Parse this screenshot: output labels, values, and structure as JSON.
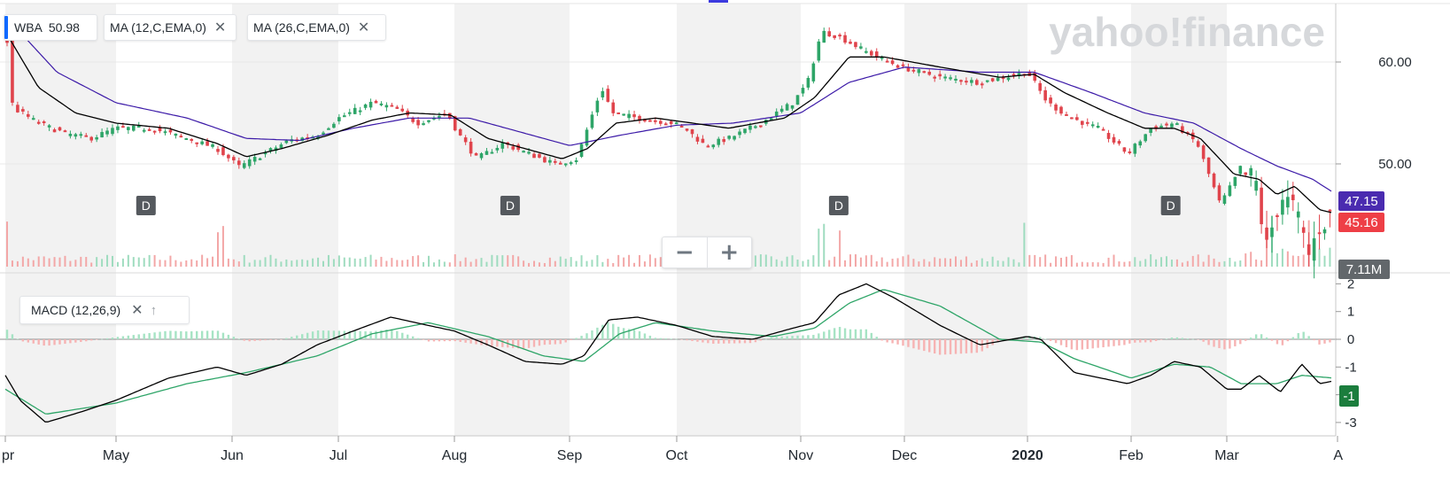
{
  "watermark": "yahoo!finance",
  "legend": {
    "ticker": "WBA",
    "ticker_price": "50.98",
    "ma12_label": "MA (12,C,EMA,0)",
    "ma26_label": "MA (26,C,EMA,0)",
    "macd_label": "MACD (12,26,9)",
    "close_symbol": "✕",
    "up_symbol": "↑"
  },
  "zoom": {
    "minus": "−",
    "plus": "+"
  },
  "badges": {
    "ma26_value": "47.15",
    "ma12_value": "45.16",
    "volume_value": "7.11M",
    "macd_value": "-1"
  },
  "colors": {
    "up": "#2ea568",
    "down": "#e0444c",
    "ma12": "#000000",
    "ma26": "#3c1aa8",
    "macd": "#000000",
    "signal": "#2ea568",
    "badge_ma26": "#4a2bb0",
    "badge_ma12": "#ee3f46",
    "badge_volume": "#62676b",
    "badge_macd": "#1b7d3d",
    "dividend_marker": "#55595e",
    "month_band": "#f2f2f2"
  },
  "chart_data": [
    {
      "type": "candlestick",
      "title": "WBA",
      "x_labels": [
        "pr",
        "May",
        "Jun",
        "Jul",
        "Aug",
        "Sep",
        "Oct",
        "Nov",
        "Dec",
        "2020",
        "Feb",
        "Mar",
        "A"
      ],
      "y_ticks": [
        "60.00",
        "50.00"
      ],
      "ylim": [
        39.9,
        65.9
      ],
      "dividend_markers": [
        {
          "label": "D",
          "date": "May 9"
        },
        {
          "label": "D",
          "date": "Aug 16"
        },
        {
          "label": "D",
          "date": "Nov 12"
        },
        {
          "label": "D",
          "date": "Feb 13"
        }
      ],
      "close_keypoints": [
        [
          "Apr 1",
          64.0
        ],
        [
          "Apr 3",
          55.5
        ],
        [
          "Apr 10",
          54.0
        ],
        [
          "Apr 17",
          53.0
        ],
        [
          "Apr 24",
          52.5
        ],
        [
          "May 1",
          53.5
        ],
        [
          "May 10",
          53.5
        ],
        [
          "May 20",
          52.5
        ],
        [
          "May 28",
          51.5
        ],
        [
          "Jun 3",
          49.7
        ],
        [
          "Jun 10",
          51.0
        ],
        [
          "Jun 17",
          52.3
        ],
        [
          "Jun 25",
          52.8
        ],
        [
          "Jul 1",
          54.5
        ],
        [
          "Jul 10",
          56.0
        ],
        [
          "Jul 16",
          55.5
        ],
        [
          "Jul 22",
          54.0
        ],
        [
          "Jul 30",
          55.0
        ],
        [
          "Aug 2",
          53.0
        ],
        [
          "Aug 7",
          50.5
        ],
        [
          "Aug 14",
          52.0
        ],
        [
          "Aug 21",
          51.0
        ],
        [
          "Aug 28",
          50.0
        ],
        [
          "Sep 3",
          50.5
        ],
        [
          "Sep 6",
          53.5
        ],
        [
          "Sep 10",
          57.5
        ],
        [
          "Sep 13",
          55.0
        ],
        [
          "Sep 20",
          54.5
        ],
        [
          "Sep 30",
          54.0
        ],
        [
          "Oct 3",
          53.5
        ],
        [
          "Oct 8",
          51.8
        ],
        [
          "Oct 14",
          52.5
        ],
        [
          "Oct 22",
          54.0
        ],
        [
          "Oct 30",
          56.0
        ],
        [
          "Nov 3",
          58.0
        ],
        [
          "Nov 7",
          63.0
        ],
        [
          "Nov 12",
          62.5
        ],
        [
          "Nov 20",
          61.0
        ],
        [
          "Nov 30",
          59.5
        ],
        [
          "Dec 10",
          58.5
        ],
        [
          "Dec 20",
          58.0
        ],
        [
          "Jan 1",
          59.0
        ],
        [
          "Jan 7",
          56.0
        ],
        [
          "Jan 14",
          54.5
        ],
        [
          "Jan 22",
          53.5
        ],
        [
          "Jan 31",
          51.0
        ],
        [
          "Feb 7",
          53.5
        ],
        [
          "Feb 14",
          54.0
        ],
        [
          "Feb 21",
          52.0
        ],
        [
          "Feb 28",
          46.0
        ],
        [
          "Mar 4",
          49.0
        ],
        [
          "Mar 9",
          48.5
        ],
        [
          "Mar 12",
          41.5
        ],
        [
          "Mar 16",
          47.0
        ],
        [
          "Mar 20",
          45.5
        ],
        [
          "Mar 24",
          41.0
        ],
        [
          "Mar 27",
          44.0
        ],
        [
          "Mar 31",
          45.16
        ]
      ],
      "ma12_keypoints": [
        [
          "Apr 1",
          63.0
        ],
        [
          "Apr 10",
          57.5
        ],
        [
          "Apr 20",
          55.0
        ],
        [
          "May 1",
          54.0
        ],
        [
          "May 15",
          53.5
        ],
        [
          "May 28",
          52.0
        ],
        [
          "Jun 5",
          50.7
        ],
        [
          "Jun 15",
          51.5
        ],
        [
          "Jun 28",
          52.8
        ],
        [
          "Jul 10",
          54.3
        ],
        [
          "Jul 20",
          55.0
        ],
        [
          "Jul 31",
          54.8
        ],
        [
          "Aug 10",
          52.5
        ],
        [
          "Aug 20",
          51.5
        ],
        [
          "Aug 30",
          50.5
        ],
        [
          "Sep 6",
          51.5
        ],
        [
          "Sep 14",
          54.0
        ],
        [
          "Sep 25",
          54.5
        ],
        [
          "Oct 5",
          54.0
        ],
        [
          "Oct 14",
          53.5
        ],
        [
          "Oct 28",
          54.5
        ],
        [
          "Nov 5",
          56.5
        ],
        [
          "Nov 15",
          60.5
        ],
        [
          "Nov 25",
          60.5
        ],
        [
          "Dec 10",
          59.5
        ],
        [
          "Dec 25",
          58.5
        ],
        [
          "Jan 3",
          58.8
        ],
        [
          "Jan 12",
          57.0
        ],
        [
          "Jan 25",
          55.0
        ],
        [
          "Feb 5",
          53.5
        ],
        [
          "Feb 14",
          53.5
        ],
        [
          "Feb 22",
          52.5
        ],
        [
          "Mar 3",
          49.0
        ],
        [
          "Mar 10",
          48.5
        ],
        [
          "Mar 15",
          47.0
        ],
        [
          "Mar 20",
          47.8
        ],
        [
          "Mar 27",
          45.5
        ],
        [
          "Mar 31",
          45.16
        ]
      ],
      "ma26_keypoints": [
        [
          "Apr 1",
          64.5
        ],
        [
          "Apr 15",
          59.0
        ],
        [
          "May 1",
          56.0
        ],
        [
          "May 20",
          54.5
        ],
        [
          "Jun 5",
          52.5
        ],
        [
          "Jun 20",
          52.3
        ],
        [
          "Jul 5",
          53.5
        ],
        [
          "Jul 20",
          54.5
        ],
        [
          "Aug 5",
          54.5
        ],
        [
          "Aug 20",
          53.0
        ],
        [
          "Sep 1",
          51.8
        ],
        [
          "Sep 15",
          52.8
        ],
        [
          "Oct 1",
          53.8
        ],
        [
          "Oct 15",
          54.0
        ],
        [
          "Nov 1",
          55.0
        ],
        [
          "Nov 15",
          58.0
        ],
        [
          "Dec 1",
          59.5
        ],
        [
          "Dec 20",
          59.0
        ],
        [
          "Jan 3",
          59.0
        ],
        [
          "Jan 20",
          57.0
        ],
        [
          "Feb 5",
          55.0
        ],
        [
          "Feb 20",
          54.0
        ],
        [
          "Mar 5",
          51.5
        ],
        [
          "Mar 15",
          49.8
        ],
        [
          "Mar 25",
          48.5
        ],
        [
          "Mar 31",
          47.15
        ]
      ],
      "volume_spikes": [
        "Apr 2",
        "May 29",
        "Nov 7",
        "Nov 12",
        "Dec 31",
        "Mar 13",
        "Mar 24"
      ],
      "last_close": 45.16,
      "last_ma12": 45.16,
      "last_ma26": 47.15,
      "last_volume": "7.11M"
    },
    {
      "type": "line",
      "title": "MACD (12,26,9)",
      "y_ticks": [
        "2",
        "1",
        "0",
        "-1",
        "-2",
        "-3"
      ],
      "ylim": [
        -3.3,
        2.3
      ],
      "macd_keypoints": [
        [
          "Apr 1",
          -1.3
        ],
        [
          "Apr 5",
          -2.2
        ],
        [
          "Apr 12",
          -3.0
        ],
        [
          "Apr 22",
          -2.6
        ],
        [
          "May 1",
          -2.2
        ],
        [
          "May 15",
          -1.4
        ],
        [
          "May 28",
          -1.0
        ],
        [
          "Jun 5",
          -1.3
        ],
        [
          "Jun 15",
          -0.9
        ],
        [
          "Jun 25",
          -0.2
        ],
        [
          "Jul 5",
          0.3
        ],
        [
          "Jul 15",
          0.8
        ],
        [
          "Jul 25",
          0.5
        ],
        [
          "Aug 1",
          0.3
        ],
        [
          "Aug 10",
          -0.2
        ],
        [
          "Aug 20",
          -0.8
        ],
        [
          "Aug 30",
          -0.9
        ],
        [
          "Sep 5",
          -0.6
        ],
        [
          "Sep 12",
          0.7
        ],
        [
          "Sep 20",
          0.8
        ],
        [
          "Oct 1",
          0.5
        ],
        [
          "Oct 10",
          0.1
        ],
        [
          "Oct 20",
          0.0
        ],
        [
          "Oct 30",
          0.4
        ],
        [
          "Nov 5",
          0.6
        ],
        [
          "Nov 12",
          1.6
        ],
        [
          "Nov 20",
          2.0
        ],
        [
          "Nov 28",
          1.5
        ],
        [
          "Dec 10",
          0.5
        ],
        [
          "Dec 20",
          -0.2
        ],
        [
          "Jan 1",
          0.1
        ],
        [
          "Jan 5",
          0.0
        ],
        [
          "Jan 15",
          -1.2
        ],
        [
          "Jan 31",
          -1.6
        ],
        [
          "Feb 7",
          -1.3
        ],
        [
          "Feb 14",
          -0.8
        ],
        [
          "Feb 22",
          -1.0
        ],
        [
          "Mar 1",
          -1.8
        ],
        [
          "Mar 5",
          -1.8
        ],
        [
          "Mar 10",
          -1.3
        ],
        [
          "Mar 16",
          -1.9
        ],
        [
          "Mar 22",
          -0.9
        ],
        [
          "Mar 27",
          -1.6
        ],
        [
          "Mar 31",
          -1.5
        ]
      ],
      "signal_keypoints": [
        [
          "Apr 1",
          -1.8
        ],
        [
          "Apr 12",
          -2.7
        ],
        [
          "May 1",
          -2.3
        ],
        [
          "May 20",
          -1.6
        ],
        [
          "Jun 5",
          -1.2
        ],
        [
          "Jun 25",
          -0.6
        ],
        [
          "Jul 10",
          0.2
        ],
        [
          "Jul 25",
          0.6
        ],
        [
          "Aug 10",
          0.1
        ],
        [
          "Aug 25",
          -0.6
        ],
        [
          "Sep 5",
          -0.8
        ],
        [
          "Sep 15",
          0.2
        ],
        [
          "Sep 25",
          0.6
        ],
        [
          "Oct 10",
          0.3
        ],
        [
          "Oct 25",
          0.1
        ],
        [
          "Nov 5",
          0.4
        ],
        [
          "Nov 15",
          1.3
        ],
        [
          "Nov 25",
          1.8
        ],
        [
          "Dec 10",
          1.2
        ],
        [
          "Dec 25",
          0.0
        ],
        [
          "Jan 5",
          -0.1
        ],
        [
          "Jan 15",
          -0.7
        ],
        [
          "Feb 1",
          -1.4
        ],
        [
          "Feb 14",
          -0.9
        ],
        [
          "Feb 25",
          -1.0
        ],
        [
          "Mar 5",
          -1.6
        ],
        [
          "Mar 15",
          -1.6
        ],
        [
          "Mar 22",
          -1.3
        ],
        [
          "Mar 31",
          -1.4
        ]
      ],
      "last_macd": -1
    }
  ]
}
